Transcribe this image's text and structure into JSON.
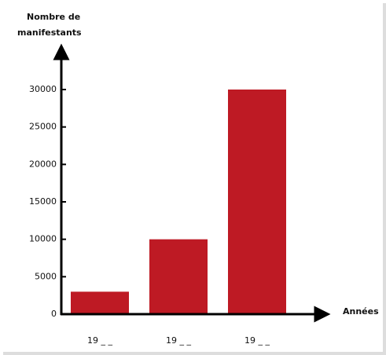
{
  "chart_data": {
    "type": "bar",
    "ylabel": [
      "Nombre de",
      "manifestants"
    ],
    "xlabel": "Années",
    "categories": [
      "19 _ _",
      "19 _ _",
      "19 _ _"
    ],
    "values": [
      3000,
      10000,
      30000
    ],
    "color": "#be1a24",
    "ylim": [
      0,
      30000
    ],
    "yticks": [
      0,
      5000,
      10000,
      15000,
      20000,
      25000,
      30000
    ],
    "grid": false
  }
}
